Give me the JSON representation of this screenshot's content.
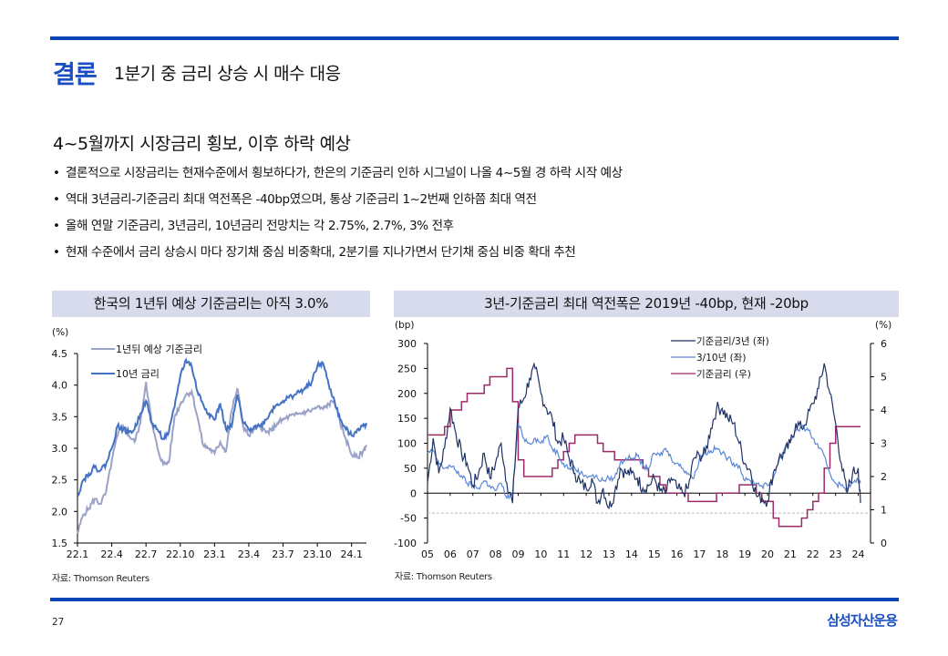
{
  "header": {
    "section": "결론",
    "headline": "1분기 중 금리 상승 시 매수 대응"
  },
  "subtitle": "4~5월까지 시장금리 횡보, 이후 하락 예상",
  "bullets": [
    "결론적으로 시장금리는 현재수준에서 횡보하다가, 한은의 기준금리 인하 시그널이 나올 4~5월 경 하락 시작 예상",
    "역대 3년금리-기준금리 최대 역전폭은 -40bp였으며, 통상 기준금리 1~2번째 인하쯤 최대 역전",
    "올해 연말 기준금리, 3년금리, 10년금리 전망치는 각 2.75%, 2.7%, 3%  전후",
    "현재 수준에서 금리 상승시 마다 장기채 중심 비중확대, 2분기를 지나가면서 단기채 중심 비중 확대 추천"
  ],
  "bullet_marker": "•",
  "footer": {
    "page": "27",
    "brand": "삼성자산운용"
  },
  "chart_data": [
    {
      "type": "line",
      "title": "한국의 1년뒤 예상 기준금리는 아직 3.0%",
      "ylabel": "(%)",
      "xlabel": "",
      "ylim": [
        1.5,
        4.5
      ],
      "yticks": [
        "1.5",
        "2.0",
        "2.5",
        "3.0",
        "3.5",
        "4.0",
        "4.5"
      ],
      "xticks": [
        "22.1",
        "22.4",
        "22.7",
        "22.10",
        "23.1",
        "23.4",
        "23.7",
        "23.10",
        "24.1"
      ],
      "x_unit": "months since 2022-01",
      "legend_position": "top-left",
      "source": "자료: Thomson Reuters",
      "x": [
        0,
        0.5,
        1,
        1.5,
        2,
        2.5,
        3,
        3.5,
        4,
        4.5,
        5,
        5.5,
        6,
        6.5,
        7,
        7.5,
        8,
        8.5,
        9,
        9.5,
        10,
        10.5,
        11,
        11.5,
        12,
        12.5,
        13,
        13.5,
        14,
        14.5,
        15,
        15.5,
        16,
        16.5,
        17,
        17.5,
        18,
        18.5,
        19,
        19.5,
        20,
        20.5,
        21,
        21.5,
        22,
        22.5,
        23,
        23.5,
        24,
        24.5,
        25,
        25.3
      ],
      "series": [
        {
          "name": "1년뒤 예상 기준금리",
          "color": "#9aa2c8",
          "values": [
            1.65,
            1.95,
            2.05,
            2.2,
            2.12,
            2.3,
            2.8,
            3.2,
            3.35,
            3.2,
            3.1,
            3.4,
            4.05,
            3.4,
            3.0,
            2.75,
            2.78,
            3.5,
            3.7,
            3.85,
            3.9,
            3.5,
            3.05,
            3.0,
            2.92,
            3.1,
            2.95,
            3.6,
            3.95,
            3.35,
            3.2,
            3.3,
            3.35,
            3.25,
            3.28,
            3.4,
            3.45,
            3.5,
            3.52,
            3.55,
            3.58,
            3.6,
            3.65,
            3.62,
            3.7,
            3.75,
            3.4,
            3.15,
            2.9,
            2.85,
            2.95,
            3.05
          ]
        },
        {
          "name": "10년 금리",
          "color": "#4472c4",
          "values": [
            2.25,
            2.5,
            2.6,
            2.7,
            2.65,
            2.75,
            3.0,
            3.35,
            3.3,
            3.25,
            3.3,
            3.55,
            3.75,
            3.4,
            3.3,
            3.15,
            3.25,
            3.65,
            4.15,
            4.4,
            4.3,
            3.9,
            3.7,
            3.55,
            3.45,
            3.7,
            3.3,
            3.35,
            3.85,
            3.4,
            3.3,
            3.35,
            3.35,
            3.45,
            3.6,
            3.7,
            3.75,
            3.8,
            3.85,
            3.9,
            3.95,
            4.05,
            4.3,
            4.35,
            4.0,
            3.75,
            3.45,
            3.3,
            3.2,
            3.3,
            3.35,
            3.4
          ]
        }
      ]
    },
    {
      "type": "line",
      "title": "3년-기준금리 최대 역전폭은 2019년 -40bp, 현재 -20bp",
      "ylabel_left": "(bp)",
      "ylabel_right": "(%)",
      "ylim_left": [
        -100,
        300
      ],
      "ylim_right": [
        0,
        6
      ],
      "yticks_left": [
        "300",
        "250",
        "200",
        "150",
        "100",
        "50",
        "0",
        "-50",
        "-100"
      ],
      "yticks_right": [
        "6",
        "5",
        "4",
        "3",
        "2",
        "1",
        "0"
      ],
      "xticks": [
        "05",
        "06",
        "07",
        "08",
        "09",
        "10",
        "11",
        "12",
        "13",
        "14",
        "15",
        "16",
        "17",
        "18",
        "19",
        "20",
        "21",
        "22",
        "23",
        "24"
      ],
      "reference_line_bp": -40,
      "legend_position": "top-right",
      "source": "자료: Thomson Reuters",
      "x": [
        2005.0,
        2005.25,
        2005.5,
        2005.75,
        2006.0,
        2006.25,
        2006.5,
        2006.75,
        2007.0,
        2007.25,
        2007.5,
        2007.75,
        2008.0,
        2008.25,
        2008.5,
        2008.75,
        2009.0,
        2009.25,
        2009.5,
        2009.75,
        2010.0,
        2010.25,
        2010.5,
        2010.75,
        2011.0,
        2011.25,
        2011.5,
        2011.75,
        2012.0,
        2012.25,
        2012.5,
        2012.75,
        2013.0,
        2013.25,
        2013.5,
        2013.75,
        2014.0,
        2014.25,
        2014.5,
        2014.75,
        2015.0,
        2015.25,
        2015.5,
        2015.75,
        2016.0,
        2016.25,
        2016.5,
        2016.75,
        2017.0,
        2017.25,
        2017.5,
        2017.75,
        2018.0,
        2018.25,
        2018.5,
        2018.75,
        2019.0,
        2019.25,
        2019.5,
        2019.75,
        2020.0,
        2020.25,
        2020.5,
        2020.75,
        2021.0,
        2021.25,
        2021.5,
        2021.75,
        2022.0,
        2022.25,
        2022.5,
        2022.75,
        2023.0,
        2023.25,
        2023.5,
        2023.75,
        2024.0,
        2024.1
      ],
      "series": [
        {
          "name": "기준금리/3년 (좌)",
          "color": "#1f3264",
          "axis": "left",
          "values": [
            20,
            110,
            40,
            90,
            170,
            120,
            80,
            60,
            15,
            40,
            80,
            30,
            60,
            100,
            20,
            -20,
            170,
            190,
            230,
            250,
            200,
            170,
            150,
            100,
            110,
            70,
            40,
            20,
            10,
            30,
            -20,
            10,
            -30,
            0,
            50,
            40,
            40,
            30,
            10,
            15,
            30,
            5,
            0,
            30,
            10,
            0,
            10,
            70,
            75,
            80,
            130,
            170,
            170,
            150,
            140,
            100,
            60,
            45,
            -5,
            -10,
            -15,
            40,
            70,
            80,
            100,
            140,
            130,
            150,
            180,
            210,
            260,
            200,
            140,
            60,
            0,
            40,
            50,
            -20
          ]
        },
        {
          "name": "3/10년 (좌)",
          "color": "#5b87d6",
          "axis": "left",
          "values": [
            80,
            85,
            60,
            50,
            55,
            45,
            35,
            20,
            15,
            10,
            25,
            15,
            5,
            20,
            -10,
            0,
            140,
            110,
            100,
            110,
            100,
            115,
            90,
            80,
            60,
            50,
            50,
            40,
            35,
            35,
            30,
            25,
            30,
            30,
            60,
            70,
            70,
            75,
            55,
            50,
            80,
            75,
            90,
            70,
            60,
            50,
            40,
            30,
            70,
            80,
            85,
            90,
            80,
            70,
            60,
            55,
            25,
            25,
            20,
            15,
            15,
            30,
            65,
            90,
            105,
            125,
            130,
            130,
            110,
            90,
            75,
            40,
            20,
            15,
            10,
            20,
            25,
            20
          ]
        },
        {
          "name": "기준금리 (우)",
          "color": "#9b2b68",
          "axis": "right",
          "values": [
            3.25,
            3.25,
            3.25,
            3.5,
            4.0,
            4.0,
            4.25,
            4.5,
            4.5,
            4.5,
            4.75,
            5.0,
            5.0,
            5.0,
            5.25,
            4.25,
            2.5,
            2.0,
            2.0,
            2.0,
            2.0,
            2.0,
            2.25,
            2.5,
            2.75,
            3.0,
            3.25,
            3.25,
            3.25,
            3.25,
            3.0,
            2.75,
            2.75,
            2.5,
            2.5,
            2.5,
            2.5,
            2.5,
            2.25,
            2.0,
            2.0,
            1.75,
            1.5,
            1.5,
            1.5,
            1.5,
            1.25,
            1.25,
            1.25,
            1.25,
            1.25,
            1.5,
            1.5,
            1.5,
            1.5,
            1.75,
            1.75,
            1.75,
            1.5,
            1.25,
            1.25,
            0.75,
            0.5,
            0.5,
            0.5,
            0.5,
            0.75,
            1.0,
            1.25,
            1.5,
            2.25,
            3.0,
            3.5,
            3.5,
            3.5,
            3.5,
            3.5,
            3.5
          ]
        }
      ]
    }
  ]
}
